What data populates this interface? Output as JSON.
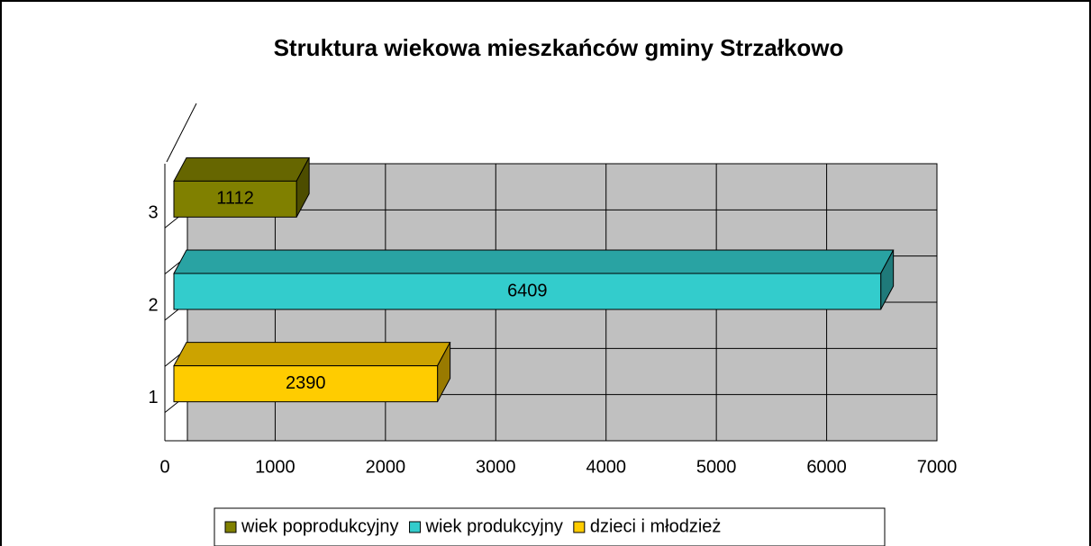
{
  "chart_data": {
    "type": "bar3d_horizontal",
    "title": "Struktura wiekowa mieszkańców gminy Strzałkowo",
    "categories": [
      "1",
      "2",
      "3"
    ],
    "series": [
      {
        "name": "wiek poprodukcyjny",
        "color": "#808000",
        "values": [
          null,
          null,
          1112
        ]
      },
      {
        "name": "wiek produkcyjny",
        "color": "#33cccc",
        "values": [
          null,
          6409,
          null
        ]
      },
      {
        "name": "dzieci i młodzież",
        "color": "#ffcc00",
        "values": [
          2390,
          null,
          null
        ]
      }
    ],
    "xlim": [
      0,
      7000
    ],
    "xticks": [
      0,
      1000,
      2000,
      3000,
      4000,
      5000,
      6000,
      7000
    ],
    "grid": true,
    "legend": "bottom"
  }
}
